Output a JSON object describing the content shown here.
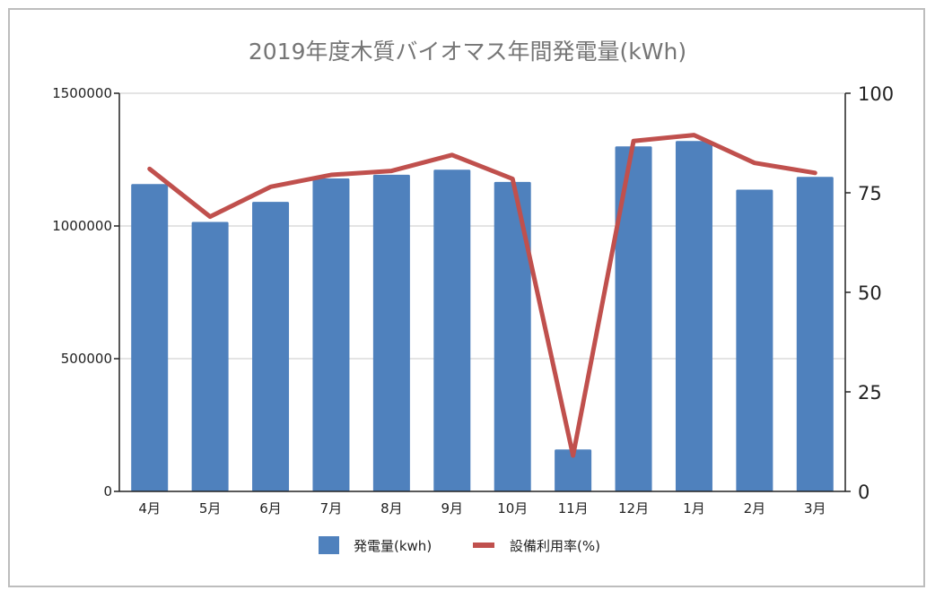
{
  "chart_data": {
    "type": "bar",
    "title": "2019年度木質バイオマス年間発電量(kWh)",
    "categories": [
      "4月",
      "5月",
      "6月",
      "7月",
      "8月",
      "9月",
      "10月",
      "11月",
      "12月",
      "1月",
      "2月",
      "3月"
    ],
    "series": [
      {
        "name": "発電量(kwh)",
        "type": "bar",
        "axis": "left",
        "color": "#4f81bd",
        "values": [
          1158000,
          1015000,
          1091000,
          1179000,
          1193000,
          1212000,
          1166000,
          158000,
          1300000,
          1320000,
          1137000,
          1185000
        ]
      },
      {
        "name": "設備利用率(%)",
        "type": "line",
        "axis": "right",
        "color": "#c0504d",
        "values": [
          81,
          69,
          76.5,
          79.5,
          80.5,
          84.5,
          78.5,
          9,
          88,
          89.5,
          82.5,
          80
        ]
      }
    ],
    "y_left": {
      "ylim": [
        0,
        1500000
      ],
      "ticks": [
        "0",
        "500000",
        "1000000",
        "1500000"
      ],
      "tick_values": [
        0,
        500000,
        1000000,
        1500000
      ]
    },
    "y_right": {
      "ylim": [
        0,
        100
      ],
      "ticks": [
        "0",
        "25",
        "50",
        "75",
        "100"
      ],
      "tick_values": [
        0,
        25,
        50,
        75,
        100
      ]
    },
    "grid": true,
    "legend": "bottom"
  }
}
